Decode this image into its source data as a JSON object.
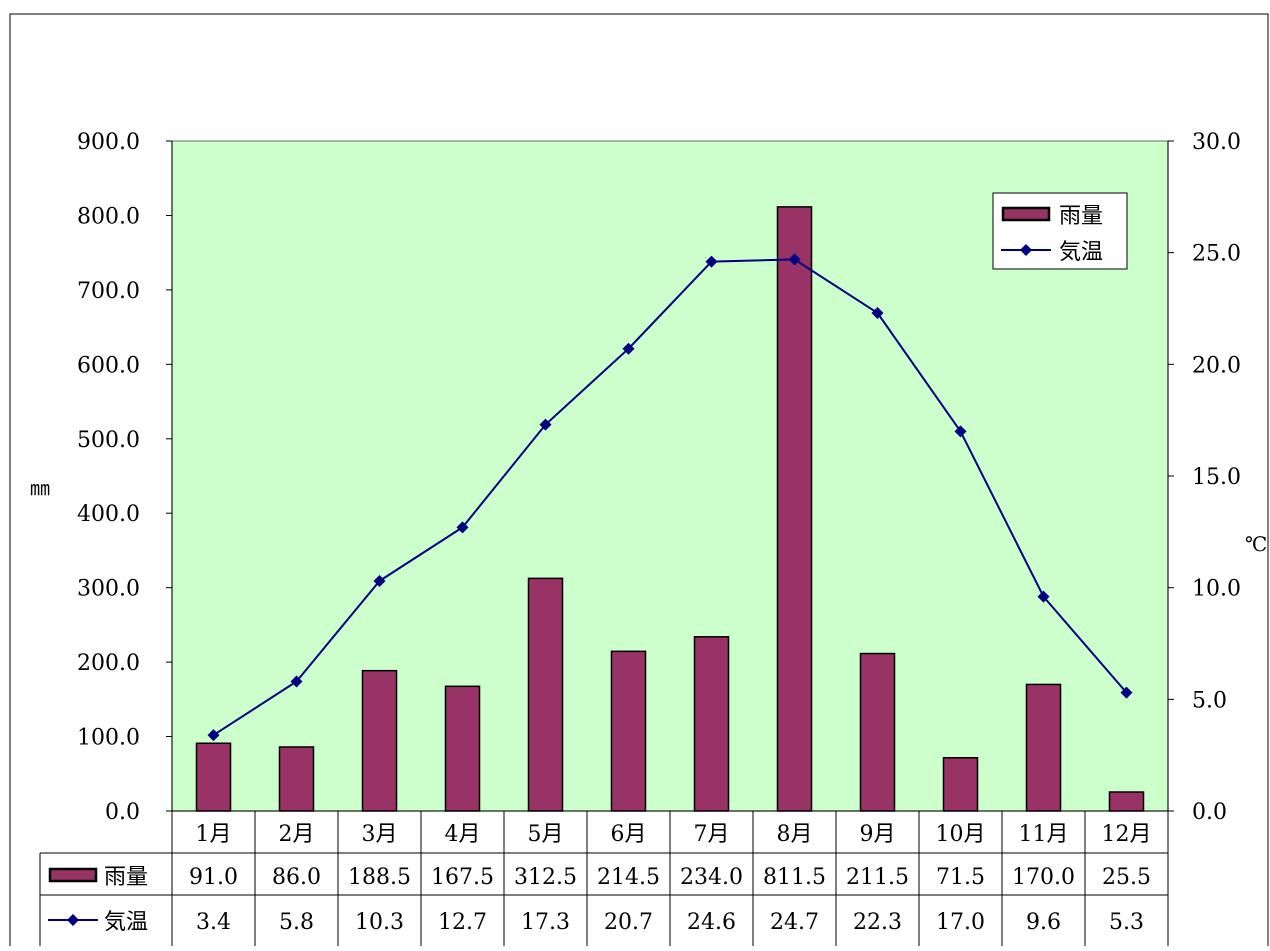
{
  "chart_data": {
    "type": "bar",
    "categories": [
      "1月",
      "2月",
      "3月",
      "4月",
      "5月",
      "6月",
      "7月",
      "8月",
      "9月",
      "10月",
      "11月",
      "12月"
    ],
    "series": [
      {
        "name": "雨量",
        "type": "bar",
        "axis": "left",
        "values": [
          91.0,
          86.0,
          188.5,
          167.5,
          312.5,
          214.5,
          234.0,
          811.5,
          211.5,
          71.5,
          170.0,
          25.5
        ],
        "labels": [
          "91.0",
          "86.0",
          "188.5",
          "167.5",
          "312.5",
          "214.5",
          "234.0",
          "811.5",
          "211.5",
          "71.5",
          "170.0",
          "25.5"
        ]
      },
      {
        "name": "気温",
        "type": "line",
        "axis": "right",
        "values": [
          3.4,
          5.8,
          10.3,
          12.7,
          17.3,
          20.7,
          24.6,
          24.7,
          22.3,
          17.0,
          9.6,
          5.3
        ],
        "labels": [
          "3.4",
          "5.8",
          "10.3",
          "12.7",
          "17.3",
          "20.7",
          "24.6",
          "24.7",
          "22.3",
          "17.0",
          "9.6",
          "5.3"
        ]
      }
    ],
    "y_left": {
      "label": "㎜",
      "ylim": [
        0,
        900
      ],
      "ticks": [
        "0.0",
        "100.0",
        "200.0",
        "300.0",
        "400.0",
        "500.0",
        "600.0",
        "700.0",
        "800.0",
        "900.0"
      ]
    },
    "y_right": {
      "label": "℃",
      "ylim": [
        0,
        30
      ],
      "ticks": [
        "0.0",
        "5.0",
        "10.0",
        "15.0",
        "20.0",
        "25.0",
        "30.0"
      ]
    },
    "legend": {
      "placement": "top-right"
    },
    "data_table": true,
    "colors": {
      "plot_background": "#ccffcc",
      "bar_fill": "#993366",
      "line": "#000080"
    }
  }
}
